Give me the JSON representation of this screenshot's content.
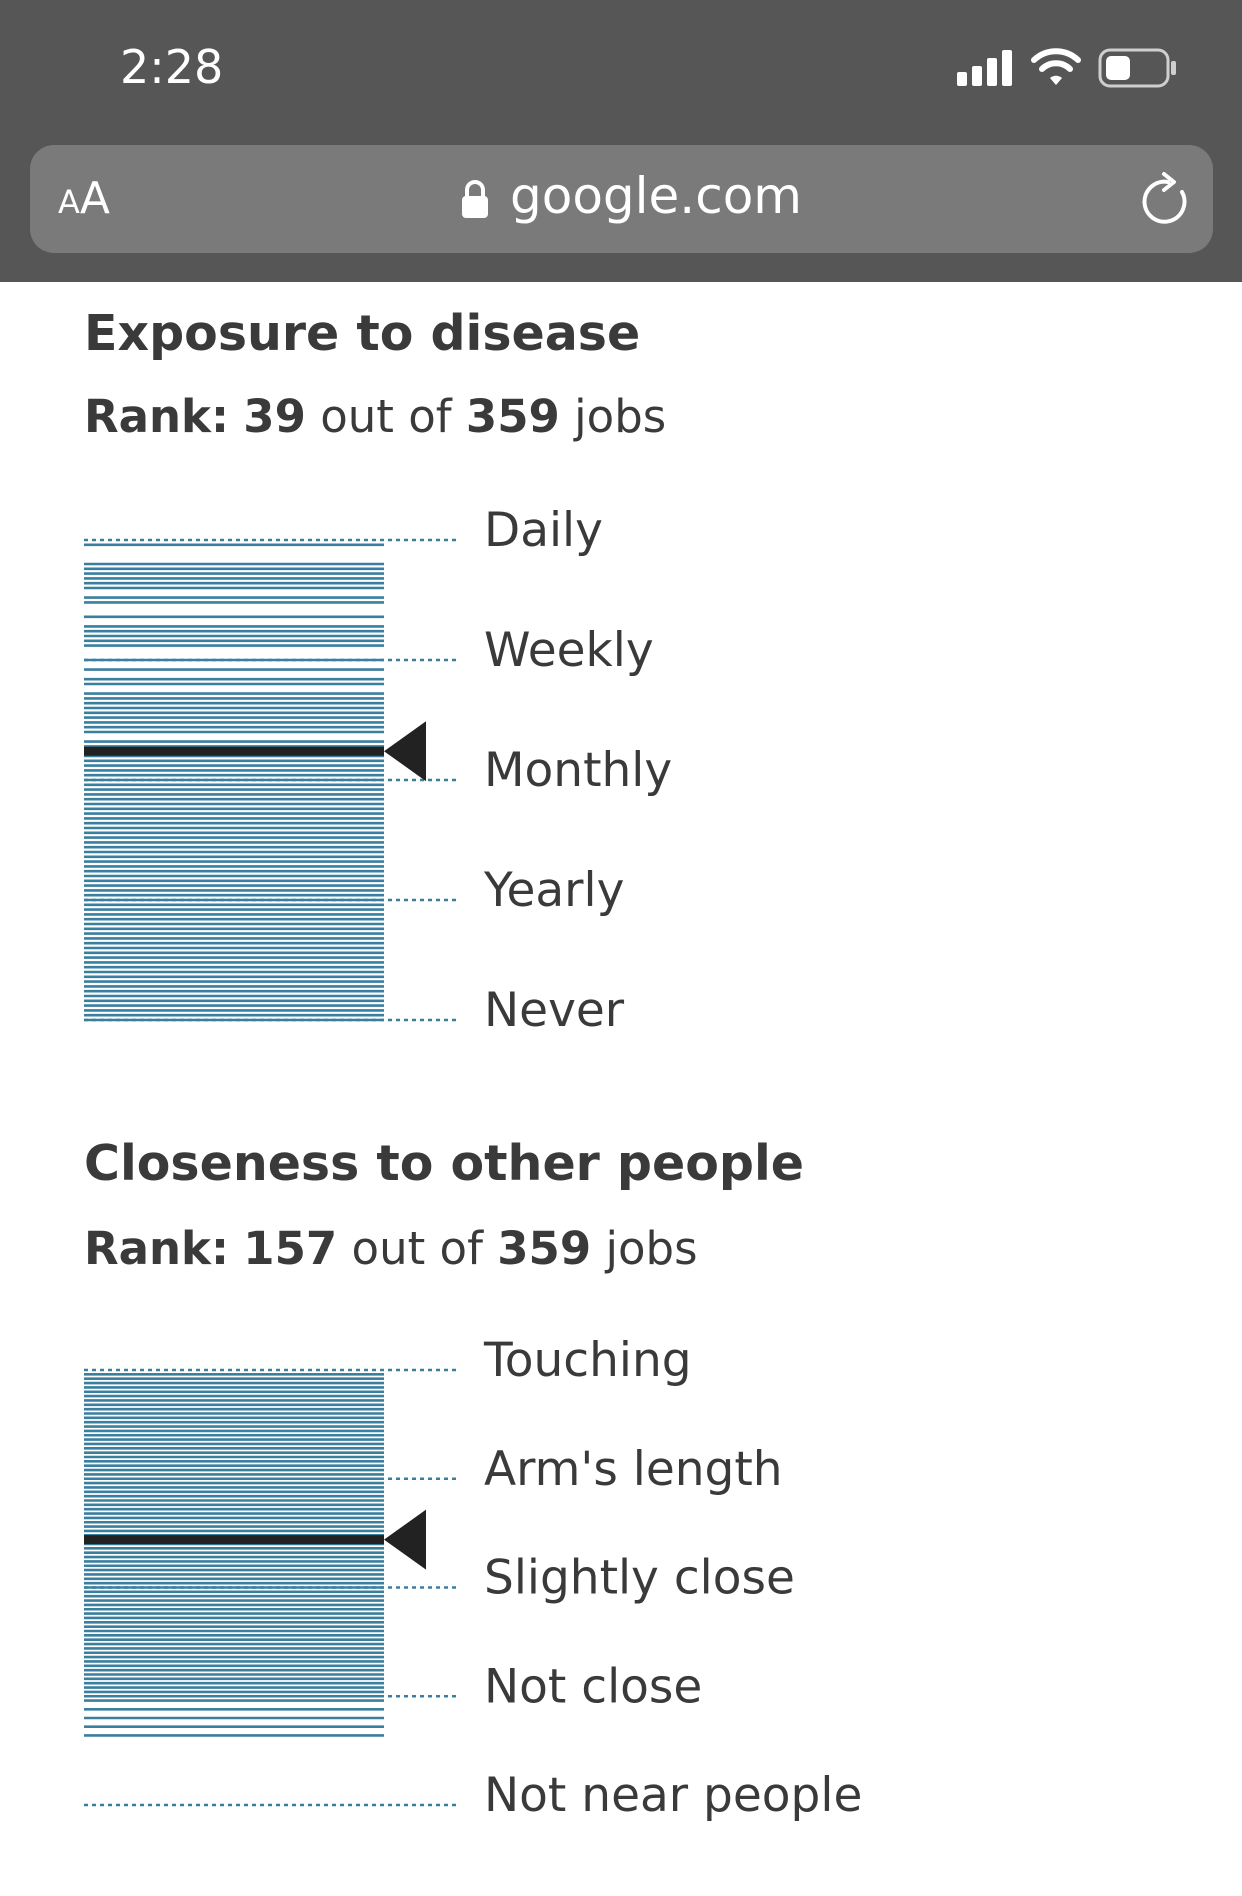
{
  "status_bar": {
    "time": "2:28"
  },
  "browser": {
    "text_size_label_small": "A",
    "text_size_label_big": "A",
    "url": "google.com",
    "icons": [
      "signal-icon",
      "wifi-icon",
      "battery-icon",
      "lock-icon",
      "reload-icon"
    ]
  },
  "colors": {
    "chrome_background": "#565656",
    "url_bar": "#7a7a7a",
    "bar_blue": "#3b7f9f",
    "marker": "#222222",
    "text": "#3a3a3a"
  },
  "sections": [
    {
      "title": "Exposure to disease",
      "rank_label": "Rank:",
      "rank": "39",
      "out_of_label": "out of",
      "total": "359",
      "jobs_label": "jobs",
      "levels": [
        "Daily",
        "Weekly",
        "Monthly",
        "Yearly",
        "Never"
      ],
      "marker_level": "Monthly"
    },
    {
      "title": "Closeness to other people",
      "rank_label": "Rank:",
      "rank": "157",
      "out_of_label": "out of",
      "total": "359",
      "jobs_label": "jobs",
      "levels": [
        "Touching",
        "Arm's length",
        "Slightly close",
        "Not close",
        "Not near people"
      ],
      "marker_level": "Arm's length"
    }
  ],
  "chart_data": [
    {
      "type": "strip",
      "title": "Exposure to disease",
      "levels": [
        "Daily",
        "Weekly",
        "Monthly",
        "Yearly",
        "Never"
      ],
      "scale": [
        100,
        75,
        50,
        25,
        0
      ],
      "highlight_job_score": 56,
      "job_scores": [
        99,
        95,
        94,
        93,
        92,
        91,
        90,
        88,
        87,
        84,
        82,
        81,
        80,
        79,
        78,
        75,
        73,
        71,
        70,
        68,
        67,
        66,
        65,
        64,
        63,
        62,
        61,
        60,
        58,
        57,
        56,
        55,
        54,
        53,
        52,
        51,
        50,
        49,
        48,
        47,
        46,
        45,
        44,
        43,
        42,
        41,
        40,
        39,
        38,
        37,
        36,
        35,
        34,
        33,
        32,
        31,
        30,
        29,
        28,
        27,
        26,
        25,
        24,
        23,
        22,
        21,
        20,
        19,
        18,
        17,
        16,
        15,
        14,
        13,
        12,
        11,
        10,
        9,
        8,
        7,
        6,
        5,
        4,
        3,
        2,
        1,
        0
      ]
    },
    {
      "type": "strip",
      "title": "Closeness to other people",
      "levels": [
        "Touching",
        "Arm's length",
        "Slightly close",
        "Not close",
        "Not near people"
      ],
      "scale": [
        100,
        75,
        50,
        25,
        0
      ],
      "highlight_job_score": 61,
      "job_scores": [
        99,
        98,
        97,
        96,
        95,
        94,
        93,
        92,
        91,
        90,
        89,
        88,
        87,
        86,
        85,
        84,
        83,
        82,
        81,
        80,
        79,
        78,
        77,
        76,
        75,
        74,
        73,
        72,
        71,
        70,
        69,
        68,
        67,
        66,
        65,
        64,
        63,
        62,
        61,
        60,
        59,
        58,
        57,
        56,
        55,
        54,
        53,
        52,
        51,
        50,
        49,
        48,
        47,
        46,
        45,
        44,
        43,
        42,
        41,
        40,
        39,
        38,
        37,
        36,
        35,
        34,
        33,
        32,
        31,
        30,
        29,
        28,
        27,
        26,
        25,
        24,
        22,
        20,
        18,
        16
      ]
    }
  ]
}
